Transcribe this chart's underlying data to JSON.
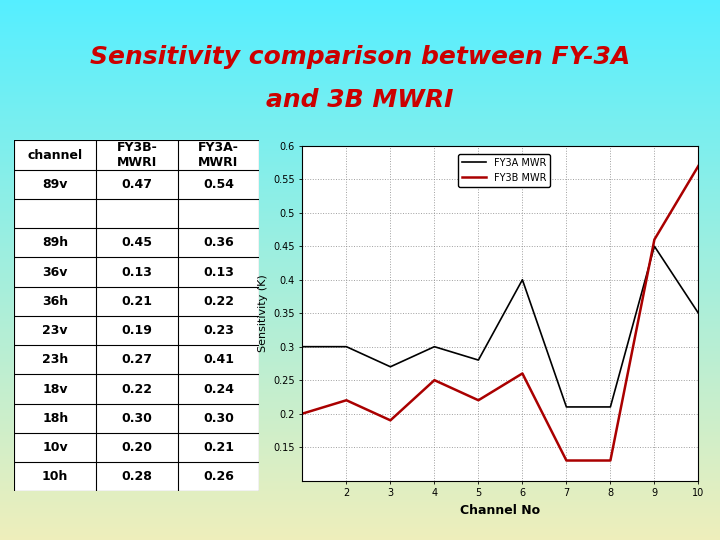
{
  "title_line1": "Sensitivity comparison between FY-3A",
  "title_line2": "and 3B MWRI",
  "title_color": "#cc0000",
  "bg_color_top": "#55eeff",
  "bg_color_bottom": "#eeeebb",
  "table_channels": [
    "channel",
    "89v",
    "",
    "89h",
    "36v",
    "36h",
    "23v",
    "23h",
    "18v",
    "18h",
    "10v",
    "10h"
  ],
  "table_fy3b": [
    "FY3B-\nMWRI",
    "0.47",
    "",
    "0.45",
    "0.13",
    "0.21",
    "0.19",
    "0.27",
    "0.22",
    "0.30",
    "0.20",
    "0.28"
  ],
  "table_fy3a": [
    "FY3A-\nMWRI",
    "0.54",
    "",
    "0.36",
    "0.13",
    "0.22",
    "0.23",
    "0.41",
    "0.24",
    "0.30",
    "0.21",
    "0.26"
  ],
  "fy3a_x": [
    1,
    2,
    3,
    4,
    5,
    6,
    7,
    8,
    9,
    10
  ],
  "fy3a_y": [
    0.3,
    0.3,
    0.27,
    0.3,
    0.28,
    0.4,
    0.21,
    0.21,
    0.45,
    0.35
  ],
  "fy3b_x": [
    1,
    2,
    3,
    4,
    5,
    6,
    7,
    8,
    9,
    10
  ],
  "fy3b_y": [
    0.2,
    0.22,
    0.19,
    0.25,
    0.22,
    0.26,
    0.13,
    0.13,
    0.46,
    0.57
  ],
  "xlim": [
    1,
    10
  ],
  "ylim": [
    0.1,
    0.6
  ],
  "ytick_vals": [
    0.15,
    0.2,
    0.25,
    0.3,
    0.35,
    0.4,
    0.45,
    0.5,
    0.55,
    0.6
  ],
  "ytick_labels": [
    "0.15",
    "0.2",
    "0.25",
    "0.3",
    "0.35",
    "0.4",
    "0.45",
    "0.5",
    "0.55",
    "0.6"
  ],
  "xtick_vals": [
    2,
    3,
    4,
    5,
    6,
    7,
    8,
    9,
    10
  ],
  "legend_fy3a": "FY3A MWR",
  "legend_fy3b": "FY3B MWR",
  "xlabel": "Channel No",
  "ylabel": "Sensitivity (K)",
  "fy3a_color": "#000000",
  "fy3b_color": "#aa0000",
  "title_fontsize": 18,
  "fig_width": 7.2,
  "fig_height": 5.4,
  "dpi": 100
}
